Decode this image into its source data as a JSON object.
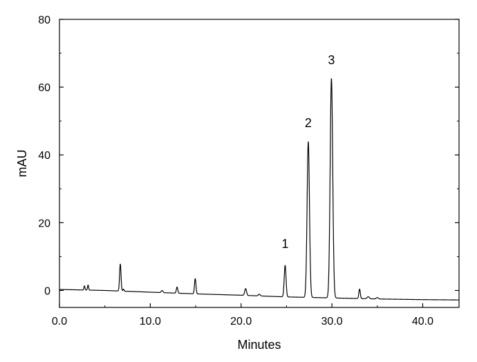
{
  "chart_data": {
    "type": "line",
    "title": "",
    "xlabel": "Minutes",
    "ylabel": "mAU",
    "xlim": [
      0,
      44
    ],
    "ylim": [
      -5,
      80
    ],
    "grid": false,
    "x_ticks": [
      0,
      10,
      20,
      30,
      40
    ],
    "x_tick_labels": [
      "0.0",
      "10.0",
      "20.0",
      "30.0",
      "40.0"
    ],
    "y_ticks": [
      0,
      20,
      40,
      60,
      80
    ],
    "y_tick_labels": [
      "0",
      "20",
      "40",
      "60",
      "80"
    ],
    "baseline": {
      "x": [
        0,
        5,
        10,
        15,
        20,
        25,
        30,
        35,
        40,
        44
      ],
      "y": [
        0.3,
        0.0,
        -0.5,
        -1.0,
        -1.4,
        -1.9,
        -2.2,
        -2.5,
        -2.7,
        -2.8
      ]
    },
    "peaks": [
      {
        "x": 2.75,
        "height": 1.2,
        "width": 0.06
      },
      {
        "x": 3.15,
        "height": 1.5,
        "width": 0.06
      },
      {
        "x": 6.7,
        "height": 8.0,
        "width": 0.08
      },
      {
        "x": 7.05,
        "height": 0.6,
        "width": 0.06
      },
      {
        "x": 11.3,
        "height": 0.6,
        "width": 0.1
      },
      {
        "x": 12.95,
        "height": 1.8,
        "width": 0.08
      },
      {
        "x": 14.95,
        "height": 4.5,
        "width": 0.08
      },
      {
        "x": 20.5,
        "height": 2.0,
        "width": 0.1
      },
      {
        "x": 22.0,
        "height": 0.5,
        "width": 0.1
      },
      {
        "x": 24.85,
        "height": 9.3,
        "width": 0.1
      },
      {
        "x": 27.4,
        "height": 46.0,
        "width": 0.13
      },
      {
        "x": 29.95,
        "height": 64.8,
        "width": 0.14
      },
      {
        "x": 33.05,
        "height": 2.8,
        "width": 0.08
      },
      {
        "x": 34.0,
        "height": 0.6,
        "width": 0.12
      },
      {
        "x": 35.0,
        "height": 0.4,
        "width": 0.12
      }
    ],
    "annotations": [
      {
        "text": "1",
        "x": 24.85,
        "y": 12.5
      },
      {
        "text": "2",
        "x": 27.4,
        "y": 48.2
      },
      {
        "text": "3",
        "x": 29.95,
        "y": 66.7
      }
    ]
  }
}
